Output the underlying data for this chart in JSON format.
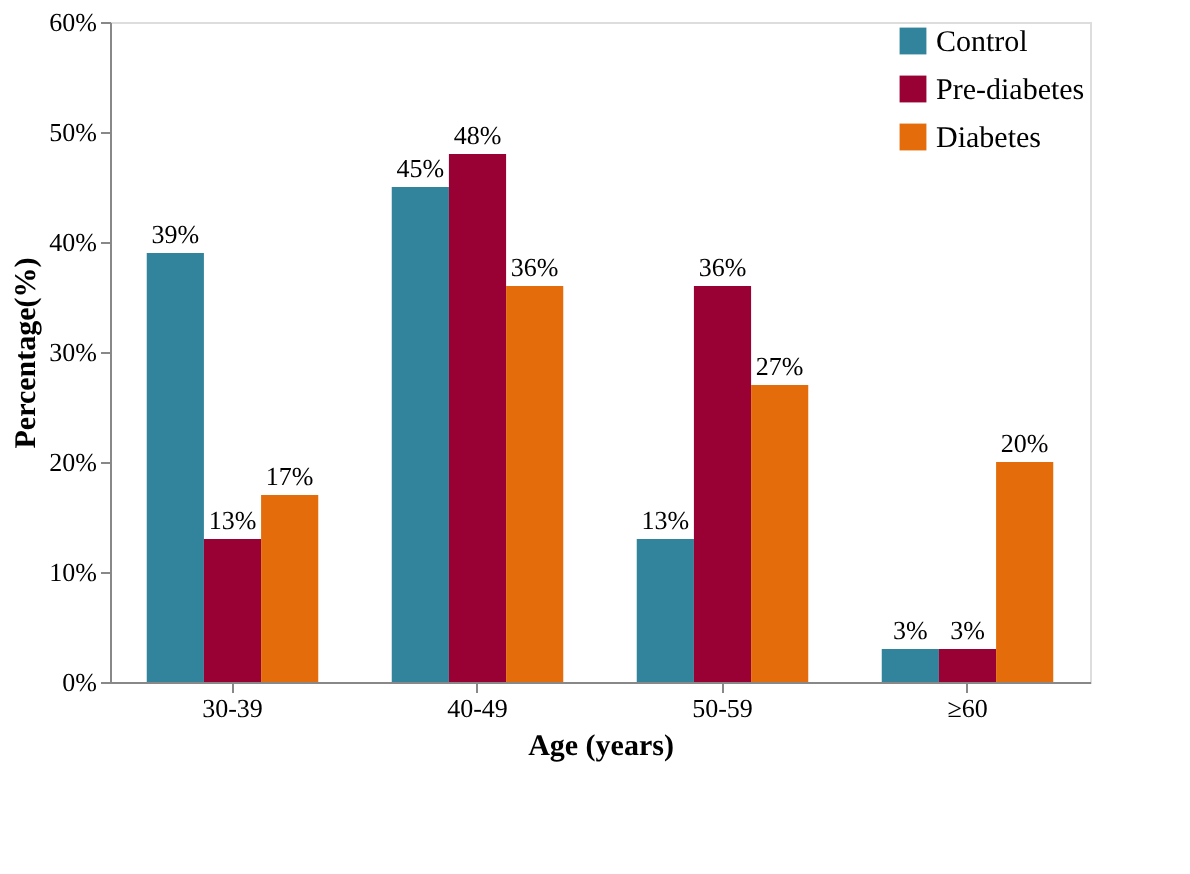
{
  "chart_data": {
    "type": "bar",
    "xlabel": "Age (years)",
    "ylabel": "Percentage(%)",
    "categories": [
      "30-39",
      "40-49",
      "50-59",
      "≥60"
    ],
    "series": [
      {
        "name": "Control",
        "color": "#31849b",
        "values": [
          39,
          45,
          13,
          3
        ],
        "value_labels": [
          "39%",
          "45%",
          "13%",
          "3%"
        ]
      },
      {
        "name": "Pre-diabetes",
        "color": "#990033",
        "values": [
          13,
          48,
          36,
          3
        ],
        "value_labels": [
          "13%",
          "48%",
          "36%",
          "3%"
        ]
      },
      {
        "name": "Diabetes",
        "color": "#e46c0a",
        "values": [
          17,
          36,
          27,
          20
        ],
        "value_labels": [
          "17%",
          "36%",
          "27%",
          "20%"
        ]
      }
    ],
    "ylim": [
      0,
      60
    ],
    "yticks": [
      {
        "value": 0,
        "label": "0%"
      },
      {
        "value": 10,
        "label": "10%"
      },
      {
        "value": 20,
        "label": "20%"
      },
      {
        "value": 30,
        "label": "30%"
      },
      {
        "value": 40,
        "label": "40%"
      },
      {
        "value": 50,
        "label": "50%"
      },
      {
        "value": 60,
        "label": "60%"
      }
    ],
    "grid": false,
    "legend": "top right"
  }
}
